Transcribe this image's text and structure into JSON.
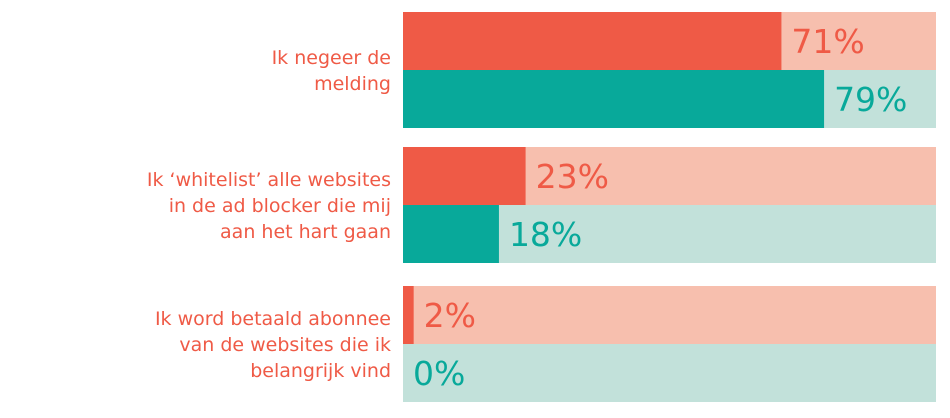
{
  "chart_data": {
    "type": "bar",
    "orientation": "horizontal",
    "xlim": [
      0,
      100
    ],
    "value_suffix": "%",
    "categories": [
      [
        "Ik negeer de",
        "melding"
      ],
      [
        "Ik ‘whitelist’ alle websites",
        "in de ad blocker die mij",
        "aan het hart gaan"
      ],
      [
        "Ik word betaald abonnee",
        "van de websites die ik",
        "belangrijk vind"
      ]
    ],
    "series": [
      {
        "values": [
          71,
          23,
          2
        ],
        "color": "#ef5a46",
        "track_color": "#f7bfae"
      },
      {
        "values": [
          79,
          18,
          0
        ],
        "color": "#08a99a",
        "track_color": "#c2e1da"
      }
    ],
    "label_color": "#ef5a46",
    "grid": false,
    "legend": "none"
  }
}
